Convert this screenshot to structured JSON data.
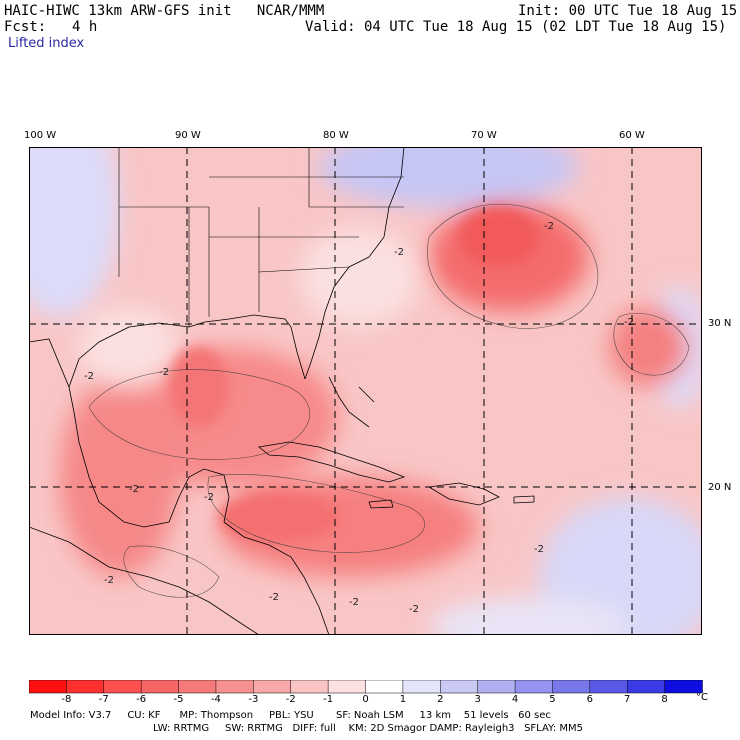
{
  "header": {
    "title": "HAIC-HIWC 13km ARW-GFS init   NCAR/MMM",
    "init": "Init: 00 UTC Tue 18 Aug 15",
    "fcst_label": "Fcst:",
    "fcst_value": "4 h",
    "valid": "Valid: 04 UTC Tue 18 Aug 15 (02 LDT Tue 18 Aug 15)",
    "field": "Lifted index"
  },
  "map": {
    "lon_labels": [
      "100 W",
      "90 W",
      "80 W",
      "70 W",
      "60 W"
    ],
    "lat_labels": [
      "30 N",
      "20 N"
    ],
    "contour_labels": [
      "-2",
      "-2",
      "-2",
      "-2",
      "-2",
      "-2",
      "-2",
      "-2",
      "-2",
      "-2",
      "-2",
      "-2"
    ]
  },
  "colorbar": {
    "levels": [
      "-8",
      "-7",
      "-6",
      "-5",
      "-4",
      "-3",
      "-2",
      "-1",
      "0",
      "1",
      "2",
      "3",
      "4",
      "5",
      "6",
      "7",
      "8"
    ],
    "unit": "°C",
    "colors": [
      "#ff1010",
      "#ff3030",
      "#ff5050",
      "#f76565",
      "#f57a7a",
      "#f79090",
      "#f8a8a8",
      "#fac4c4",
      "#fde0e0",
      "#ffffff",
      "#e4e4fb",
      "#cacaf5",
      "#b0b0f2",
      "#9494ef",
      "#7878eb",
      "#5a5ae8",
      "#3a3ae6",
      "#0d0ddf"
    ]
  },
  "model_info": {
    "line1": "Model Info: V3.7     CU: KF      MP: Thompson     PBL: YSU       SF: Noah LSM     13 km    51 levels   60 sec",
    "line2": "LW: RRTMG     SW: RRTMG   DIFF: full    KM: 2D Smagor DAMP: Rayleigh3   SFLAY: MM5"
  }
}
